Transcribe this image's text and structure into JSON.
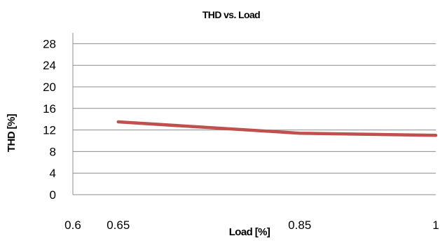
{
  "chart_data": {
    "type": "line",
    "title": "THD vs. Load",
    "xlabel": "Load [%]",
    "ylabel": "THD [%]",
    "x_tick_labels": [
      "0.6",
      "0.65",
      "0.85",
      "1"
    ],
    "y_ticks": [
      0,
      4,
      8,
      12,
      16,
      20,
      24,
      28
    ],
    "y_tick_labels": [
      "0",
      "4",
      "8",
      "12",
      "16",
      "20",
      "24",
      "28"
    ],
    "ylim": [
      0,
      30
    ],
    "grid": true,
    "legend": "none",
    "series": [
      {
        "color": "#c0504d",
        "x": [
          "0.65",
          "0.85",
          "1"
        ],
        "values": [
          13.5,
          11.4,
          11.0
        ]
      }
    ]
  }
}
